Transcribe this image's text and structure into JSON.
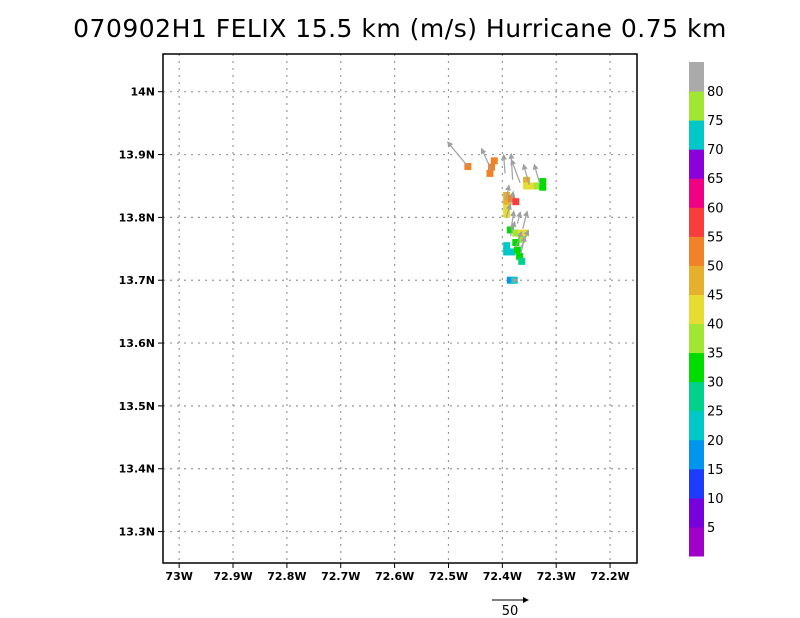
{
  "title": "070902H1 FELIX 15.5 km (m/s) Hurricane 0.75 km",
  "chart_data": {
    "type": "heatmap",
    "title": "070902H1 FELIX 15.5 km (m/s) Hurricane 0.75 km",
    "xlabel": "",
    "ylabel": "",
    "xlim": [
      -73.03,
      -72.15
    ],
    "ylim": [
      13.25,
      14.06
    ],
    "grid": true,
    "x_ticks": [
      {
        "value": -73.0,
        "label": "73W"
      },
      {
        "value": -72.9,
        "label": "72.9W"
      },
      {
        "value": -72.8,
        "label": "72.8W"
      },
      {
        "value": -72.7,
        "label": "72.7W"
      },
      {
        "value": -72.6,
        "label": "72.6W"
      },
      {
        "value": -72.5,
        "label": "72.5W"
      },
      {
        "value": -72.4,
        "label": "72.4W"
      },
      {
        "value": -72.3,
        "label": "72.3W"
      },
      {
        "value": -72.2,
        "label": "72.2W"
      }
    ],
    "y_ticks": [
      {
        "value": 14.0,
        "label": "14N"
      },
      {
        "value": 13.9,
        "label": "13.9N"
      },
      {
        "value": 13.8,
        "label": "13.8N"
      },
      {
        "value": 13.7,
        "label": "13.7N"
      },
      {
        "value": 13.6,
        "label": "13.6N"
      },
      {
        "value": 13.5,
        "label": "13.5N"
      },
      {
        "value": 13.4,
        "label": "13.4N"
      },
      {
        "value": 13.3,
        "label": "13.3N"
      }
    ],
    "colorbar": {
      "labels": [
        "5",
        "10",
        "15",
        "20",
        "25",
        "30",
        "35",
        "40",
        "45",
        "50",
        "55",
        "60",
        "65",
        "70",
        "75",
        "80"
      ],
      "colors": [
        "#a000c8",
        "#7800dc",
        "#1e3cff",
        "#0096f0",
        "#00c8c8",
        "#00d28c",
        "#00dc00",
        "#a0e632",
        "#e6dc32",
        "#e6af2d",
        "#f08228",
        "#fa3c3c",
        "#f00082",
        "#8c00dc",
        "#00c8c8",
        "#a0e632",
        "#aaaaaa"
      ]
    },
    "cells": [
      {
        "lon": -72.464,
        "lat": 13.881,
        "value": 50
      },
      {
        "lon": -72.423,
        "lat": 13.87,
        "value": 50
      },
      {
        "lon": -72.42,
        "lat": 13.88,
        "value": 50
      },
      {
        "lon": -72.415,
        "lat": 13.89,
        "value": 50
      },
      {
        "lon": -72.355,
        "lat": 13.859,
        "value": 45
      },
      {
        "lon": -72.355,
        "lat": 13.85,
        "value": 40
      },
      {
        "lon": -72.345,
        "lat": 13.85,
        "value": 40
      },
      {
        "lon": -72.335,
        "lat": 13.85,
        "value": 35
      },
      {
        "lon": -72.325,
        "lat": 13.848,
        "value": 30
      },
      {
        "lon": -72.325,
        "lat": 13.857,
        "value": 30
      },
      {
        "lon": -72.392,
        "lat": 13.835,
        "value": 45
      },
      {
        "lon": -72.392,
        "lat": 13.825,
        "value": 45
      },
      {
        "lon": -72.392,
        "lat": 13.815,
        "value": 40
      },
      {
        "lon": -72.392,
        "lat": 13.805,
        "value": 40
      },
      {
        "lon": -72.383,
        "lat": 13.83,
        "value": 50
      },
      {
        "lon": -72.375,
        "lat": 13.825,
        "value": 55
      },
      {
        "lon": -72.385,
        "lat": 13.78,
        "value": 30
      },
      {
        "lon": -72.375,
        "lat": 13.775,
        "value": 35
      },
      {
        "lon": -72.365,
        "lat": 13.775,
        "value": 40
      },
      {
        "lon": -72.358,
        "lat": 13.775,
        "value": 40
      },
      {
        "lon": -72.365,
        "lat": 13.765,
        "value": 35
      },
      {
        "lon": -72.392,
        "lat": 13.755,
        "value": 20
      },
      {
        "lon": -72.392,
        "lat": 13.745,
        "value": 20
      },
      {
        "lon": -72.382,
        "lat": 13.745,
        "value": 20
      },
      {
        "lon": -72.375,
        "lat": 13.76,
        "value": 30
      },
      {
        "lon": -72.372,
        "lat": 13.748,
        "value": 30
      },
      {
        "lon": -72.368,
        "lat": 13.738,
        "value": 30
      },
      {
        "lon": -72.364,
        "lat": 13.73,
        "value": 25
      },
      {
        "lon": -72.385,
        "lat": 13.7,
        "value": 15
      },
      {
        "lon": -72.378,
        "lat": 13.7,
        "value": 20
      }
    ],
    "vectors": [
      {
        "lon": -72.464,
        "lat": 13.881,
        "u": -14,
        "v": 17
      },
      {
        "lon": -72.42,
        "lat": 13.875,
        "u": -7,
        "v": 15
      },
      {
        "lon": -72.395,
        "lat": 13.87,
        "u": -1,
        "v": 13
      },
      {
        "lon": -72.381,
        "lat": 13.86,
        "u": -1,
        "v": 18
      },
      {
        "lon": -72.367,
        "lat": 13.855,
        "u": -6,
        "v": 16
      },
      {
        "lon": -72.35,
        "lat": 13.852,
        "u": -4,
        "v": 14
      },
      {
        "lon": -72.33,
        "lat": 13.852,
        "u": -4,
        "v": 14
      },
      {
        "lon": -72.393,
        "lat": 13.828,
        "u": 2,
        "v": 10
      },
      {
        "lon": -72.385,
        "lat": 13.818,
        "u": 2,
        "v": 10
      },
      {
        "lon": -72.393,
        "lat": 13.8,
        "u": 3,
        "v": 9
      },
      {
        "lon": -72.384,
        "lat": 13.78,
        "u": 2,
        "v": 13
      },
      {
        "lon": -72.372,
        "lat": 13.79,
        "u": 2,
        "v": 8
      },
      {
        "lon": -72.362,
        "lat": 13.782,
        "u": 3,
        "v": 12
      },
      {
        "lon": -72.385,
        "lat": 13.77,
        "u": 3,
        "v": 10
      },
      {
        "lon": -72.375,
        "lat": 13.752,
        "u": 4,
        "v": 11
      },
      {
        "lon": -72.366,
        "lat": 13.742,
        "u": 3,
        "v": 12
      },
      {
        "lon": -72.365,
        "lat": 13.752,
        "u": 5,
        "v": 12
      },
      {
        "lon": -72.38,
        "lat": 13.7,
        "u": 3,
        "v": 0
      }
    ],
    "reference_vector": {
      "label": "50",
      "magnitude": 50
    }
  }
}
